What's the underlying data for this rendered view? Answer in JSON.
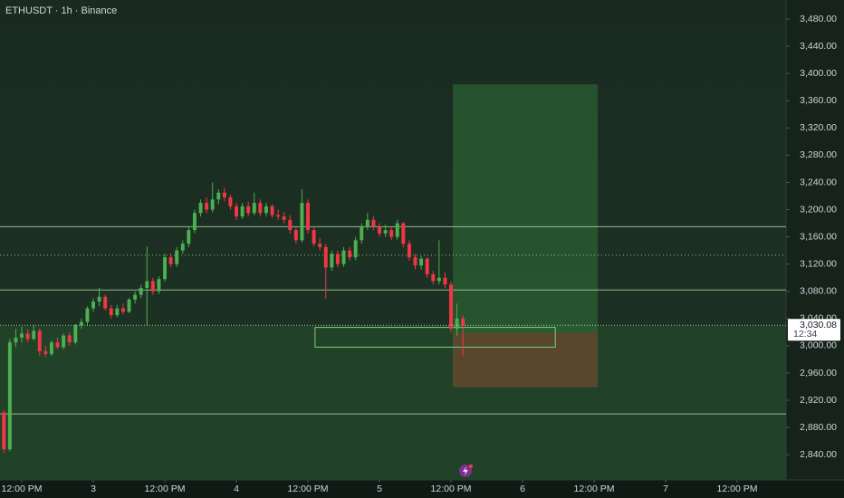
{
  "chart_data": {
    "type": "candlestick",
    "title": "ETHUSDT · 1h · Binance",
    "x": [
      -3,
      -2,
      -1,
      0,
      1,
      2,
      3,
      4,
      5,
      6,
      7,
      8,
      9,
      10,
      11,
      12,
      13,
      14,
      15,
      16,
      17,
      18,
      19,
      20,
      21,
      22,
      23,
      24,
      25,
      26,
      27,
      28,
      29,
      30,
      31,
      32,
      33,
      34,
      35,
      36,
      37,
      38,
      39,
      40,
      41,
      42,
      43,
      44,
      45,
      46,
      47,
      48,
      49,
      50,
      51,
      52,
      53,
      54,
      55,
      56,
      57,
      58,
      59,
      60,
      61,
      62,
      63,
      64,
      65,
      66,
      67,
      68,
      69,
      70,
      71,
      72,
      73,
      74
    ],
    "open": [
      2902,
      2848,
      3005,
      3012,
      3018,
      3010,
      3022,
      2992,
      2988,
      3005,
      2998,
      3015,
      3005,
      3030,
      3035,
      3055,
      3065,
      3072,
      3055,
      3045,
      3055,
      3050,
      3068,
      3075,
      3085,
      3095,
      3080,
      3098,
      3130,
      3120,
      3140,
      3150,
      3170,
      3195,
      3210,
      3200,
      3215,
      3225,
      3218,
      3205,
      3190,
      3205,
      3195,
      3210,
      3195,
      3205,
      3192,
      3190,
      3185,
      3170,
      3155,
      3210,
      3170,
      3150,
      3145,
      3115,
      3135,
      3120,
      3140,
      3130,
      3155,
      3175,
      3185,
      3175,
      3165,
      3170,
      3160,
      3180,
      3150,
      3130,
      3118,
      3128,
      3105,
      3095,
      3100,
      3090,
      3025,
      3040
    ],
    "high": [
      2905,
      3010,
      3025,
      3028,
      3024,
      3030,
      3025,
      3000,
      3008,
      3012,
      3018,
      3020,
      3032,
      3040,
      3058,
      3070,
      3085,
      3075,
      3060,
      3060,
      3062,
      3070,
      3080,
      3090,
      3146,
      3100,
      3102,
      3135,
      3136,
      3145,
      3155,
      3175,
      3200,
      3215,
      3218,
      3240,
      3230,
      3232,
      3222,
      3210,
      3210,
      3212,
      3225,
      3215,
      3210,
      3208,
      3200,
      3196,
      3192,
      3175,
      3230,
      3215,
      3175,
      3158,
      3150,
      3140,
      3140,
      3145,
      3145,
      3160,
      3180,
      3195,
      3190,
      3180,
      3178,
      3175,
      3185,
      3182,
      3155,
      3135,
      3132,
      3130,
      3110,
      3155,
      3108,
      3095,
      3062,
      3045
    ],
    "low": [
      2843,
      2845,
      2998,
      3005,
      3005,
      3008,
      2985,
      2983,
      2985,
      2995,
      2995,
      3000,
      3002,
      3025,
      3030,
      3050,
      3058,
      3052,
      3040,
      3042,
      3046,
      3048,
      3062,
      3070,
      3030,
      3075,
      3076,
      3094,
      3115,
      3116,
      3135,
      3145,
      3165,
      3190,
      3195,
      3196,
      3208,
      3212,
      3200,
      3185,
      3186,
      3190,
      3192,
      3190,
      3190,
      3188,
      3185,
      3180,
      3165,
      3150,
      3152,
      3165,
      3146,
      3140,
      3069,
      3110,
      3115,
      3116,
      3125,
      3126,
      3150,
      3170,
      3170,
      3160,
      3160,
      3155,
      3156,
      3145,
      3125,
      3112,
      3112,
      3100,
      3090,
      3090,
      3085,
      3020,
      3015,
      2985
    ],
    "close": [
      2848,
      3005,
      3012,
      3018,
      3010,
      3022,
      2992,
      2988,
      3005,
      2998,
      3015,
      3005,
      3030,
      3035,
      3055,
      3065,
      3072,
      3055,
      3045,
      3055,
      3050,
      3068,
      3075,
      3085,
      3095,
      3080,
      3098,
      3130,
      3120,
      3140,
      3150,
      3170,
      3195,
      3210,
      3200,
      3215,
      3225,
      3218,
      3205,
      3190,
      3205,
      3195,
      3210,
      3195,
      3205,
      3192,
      3190,
      3185,
      3170,
      3155,
      3210,
      3170,
      3150,
      3145,
      3115,
      3135,
      3120,
      3140,
      3130,
      3155,
      3175,
      3185,
      3175,
      3165,
      3170,
      3160,
      3180,
      3150,
      3130,
      3118,
      3128,
      3105,
      3095,
      3100,
      3090,
      3025,
      3040,
      3030.08
    ],
    "up_color": "#4caf50",
    "down_color": "#f23645",
    "xlim": [
      -3.65,
      128.2
    ],
    "xticks": [
      {
        "value": 0,
        "label": "12:00 PM"
      },
      {
        "value": 12,
        "label": "3"
      },
      {
        "value": 24,
        "label": "12:00 PM"
      },
      {
        "value": 36,
        "label": "4"
      },
      {
        "value": 48,
        "label": "12:00 PM"
      },
      {
        "value": 60,
        "label": "5"
      },
      {
        "value": 72,
        "label": "12:00 PM"
      },
      {
        "value": 84,
        "label": "6"
      },
      {
        "value": 96,
        "label": "12:00 PM"
      },
      {
        "value": 108,
        "label": "7"
      },
      {
        "value": 120,
        "label": "12:00 PM"
      }
    ],
    "ylim": [
      2803,
      3508
    ],
    "yticks": [
      {
        "value": 2840,
        "label": "2,840.00"
      },
      {
        "value": 2880,
        "label": "2,880.00"
      },
      {
        "value": 2920,
        "label": "2,920.00"
      },
      {
        "value": 2960,
        "label": "2,960.00"
      },
      {
        "value": 3000,
        "label": "3,000.00"
      },
      {
        "value": 3040,
        "label": "3,040.00"
      },
      {
        "value": 3080,
        "label": "3,080.00"
      },
      {
        "value": 3120,
        "label": "3,120.00"
      },
      {
        "value": 3160,
        "label": "3,160.00"
      },
      {
        "value": 3200,
        "label": "3,200.00"
      },
      {
        "value": 3240,
        "label": "3,240.00"
      },
      {
        "value": 3280,
        "label": "3,280.00"
      },
      {
        "value": 3320,
        "label": "3,320.00"
      },
      {
        "value": 3360,
        "label": "3,360.00"
      },
      {
        "value": 3400,
        "label": "3,400.00"
      },
      {
        "value": 3440,
        "label": "3,440.00"
      },
      {
        "value": 3480,
        "label": "3,480.00"
      }
    ],
    "hlines": [
      {
        "value": 3175,
        "style": "solid"
      },
      {
        "value": 3133,
        "style": "dotted"
      },
      {
        "value": 3082,
        "style": "solid"
      },
      {
        "value": 2900,
        "style": "solid"
      }
    ],
    "last_price": {
      "value": 3030.08,
      "label": "3,030.08"
    },
    "countdown": "12:34",
    "position": {
      "x_start": 72.3,
      "x_end": 96.6,
      "entry": 3019,
      "target": 3384,
      "stop": 2939
    },
    "box": {
      "x_start": 49.2,
      "x_end": 89.5,
      "top": 3027,
      "bottom": 2998
    }
  }
}
